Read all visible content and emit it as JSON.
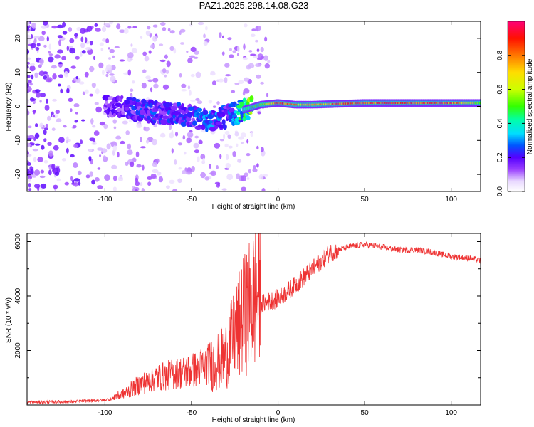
{
  "title": "PAZ1.2025.298.14.08.G23",
  "chart_data": [
    {
      "type": "heatmap",
      "name": "spectrogram",
      "xlabel": "Height of straight line (km)",
      "ylabel": "Frequency (Hz)",
      "xlim": [
        -145,
        117
      ],
      "ylim": [
        -25,
        25
      ],
      "xticks": [
        -100,
        -50,
        0,
        50,
        100
      ],
      "yticks": [
        -20,
        -10,
        0,
        10,
        20
      ],
      "xtick_labels": [
        "-100",
        "-50",
        "0",
        "50",
        "100"
      ],
      "ytick_labels": [
        "-20",
        "-10",
        "0",
        "10",
        "20"
      ],
      "colorbar": {
        "label": "Normalized spectral amplitude",
        "range": [
          0,
          1
        ],
        "ticks": [
          0.0,
          0.2,
          0.4,
          0.6,
          0.8
        ],
        "tick_labels": [
          "0.0",
          "0.2",
          "0.4",
          "0.6",
          "0.8"
        ]
      },
      "ridge": {
        "description_points_x": [
          -100,
          -90,
          -80,
          -70,
          -60,
          -50,
          -40,
          -30,
          -20,
          -10,
          0,
          10,
          20,
          50,
          100,
          117
        ],
        "frequency_hz": [
          0,
          0,
          -1,
          -2,
          -2,
          -3,
          -4,
          -3,
          -1,
          0.5,
          1,
          0.5,
          0.5,
          1,
          1,
          1
        ],
        "amplitude": [
          0.15,
          0.15,
          0.2,
          0.2,
          0.2,
          0.2,
          0.25,
          0.2,
          0.4,
          0.5,
          0.8,
          0.75,
          0.7,
          0.85,
          0.85,
          0.5
        ]
      }
    },
    {
      "type": "line",
      "name": "snr",
      "xlabel": "Height of straight line (km)",
      "ylabel": "SNR (10 * v/v)",
      "xlim": [
        -145,
        117
      ],
      "ylim": [
        0,
        6300
      ],
      "xticks": [
        -100,
        -50,
        0,
        50,
        100
      ],
      "yticks": [
        2000,
        4000,
        6000
      ],
      "xtick_labels": [
        "-100",
        "-50",
        "0",
        "50",
        "100"
      ],
      "ytick_labels": [
        "2000",
        "4000",
        "6000"
      ],
      "color": "#ee3333",
      "envelope": {
        "x": [
          -145,
          -120,
          -100,
          -90,
          -80,
          -70,
          -60,
          -50,
          -40,
          -30,
          -25,
          -20,
          -15,
          -10,
          -5,
          0,
          10,
          20,
          30,
          40,
          50,
          60,
          70,
          80,
          90,
          100,
          110,
          117
        ],
        "y": [
          100,
          120,
          180,
          300,
          600,
          800,
          900,
          1000,
          1200,
          1600,
          2200,
          2800,
          3300,
          3700,
          3800,
          3900,
          4400,
          5000,
          5600,
          5800,
          5900,
          5800,
          5700,
          5700,
          5600,
          5450,
          5400,
          5300
        ]
      }
    }
  ]
}
